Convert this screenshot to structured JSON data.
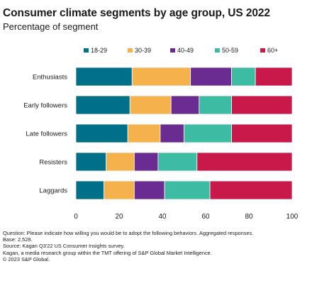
{
  "chart_data": {
    "type": "bar",
    "orientation": "horizontal",
    "stacked": true,
    "title": "Consumer climate segments by age group, US 2022",
    "subtitle": "Percentage of segment",
    "categories": [
      "Enthusiasts",
      "Early followers",
      "Late followers",
      "Resisters",
      "Laggards"
    ],
    "series": [
      {
        "name": "18-29",
        "color": "#006f8a",
        "values": [
          26,
          25,
          24,
          14,
          13
        ]
      },
      {
        "name": "30-39",
        "color": "#f5b14c",
        "values": [
          27,
          19,
          15,
          13,
          14
        ]
      },
      {
        "name": "40-49",
        "color": "#6b2c91",
        "values": [
          19,
          13,
          11,
          11,
          14
        ]
      },
      {
        "name": "50-59",
        "color": "#3ebca3",
        "values": [
          11,
          15,
          22,
          18,
          21
        ]
      },
      {
        "name": "60+",
        "color": "#c9184a",
        "values": [
          17,
          28,
          28,
          44,
          38
        ]
      }
    ],
    "xlim": [
      0,
      100
    ],
    "xticks": [
      0,
      20,
      40,
      60,
      80,
      100
    ],
    "legend_position": "top",
    "grid": false
  },
  "notes": [
    "Question: Please indicate how willing you would be to adopt the following behaviors. Aggregated responses.",
    "Base: 2,528.",
    "Source: Kagan Q3'22 US Consumer Insights survey.",
    "Kagan, a media research group within the TMT offering of S&P Global Market Intelligence.",
    "© 2023 S&P Global."
  ]
}
